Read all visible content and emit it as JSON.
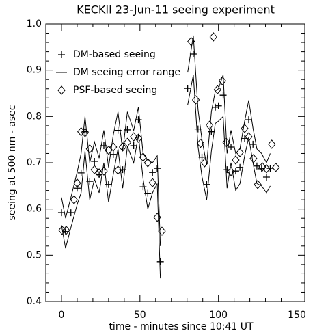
{
  "chart_data": {
    "type": "scatter",
    "title": "KECKII 23-Jun-11 seeing experiment",
    "x_label": "time - minutes since 10:41 UT",
    "y_label": "seeing at 500 nm - asec",
    "xlim": [
      -10,
      155
    ],
    "xticks": [
      0,
      50,
      100,
      150
    ],
    "x_minor": 5,
    "ylim": [
      0.4,
      1.0
    ],
    "yticks": [
      {
        "value": 0.4,
        "label": "0.4"
      },
      {
        "value": 0.5,
        "label": "0.5"
      },
      {
        "value": 0.6,
        "label": "0.6"
      },
      {
        "value": 0.7,
        "label": "0.7"
      },
      {
        "value": 0.8,
        "label": "0.8"
      },
      {
        "value": 0.9,
        "label": "0.9"
      },
      {
        "value": 1.0,
        "label": "1.0"
      }
    ],
    "y_minor": 5,
    "legend": "upper left",
    "series": [
      {
        "name": "DM-based seeing",
        "marker": "plus",
        "color": "#000000",
        "x": [
          0,
          2.6,
          6,
          10,
          12.5,
          15,
          18,
          21,
          24,
          27,
          30,
          33,
          36,
          39,
          42,
          46,
          49,
          52,
          55,
          58,
          61,
          63,
          80.4,
          84,
          87,
          89.5,
          92.5,
          95.5,
          98,
          100,
          103,
          105.5,
          108,
          111,
          113.7,
          116.7,
          119.3,
          122,
          124.5,
          127.5,
          130.6,
          133
        ],
        "values": [
          0.592,
          0.551,
          0.592,
          0.645,
          0.678,
          0.767,
          0.66,
          0.703,
          0.674,
          0.737,
          0.653,
          0.718,
          0.77,
          0.685,
          0.771,
          0.737,
          0.793,
          0.648,
          0.634,
          0.679,
          0.688,
          0.486,
          0.861,
          0.935,
          0.773,
          0.712,
          0.653,
          0.767,
          0.82,
          0.823,
          0.846,
          0.685,
          0.734,
          0.682,
          0.69,
          0.752,
          0.793,
          0.74,
          0.693,
          0.687,
          0.669,
          0.688
        ]
      },
      {
        "name": "DM seeing error range",
        "marker": "band-lines",
        "color": "#000000",
        "x": [
          0,
          2.6,
          6,
          10,
          12.5,
          15,
          18,
          21,
          24,
          27,
          30,
          33,
          36,
          39,
          42,
          46,
          49,
          52,
          55,
          58,
          61,
          63,
          null,
          80.4,
          84,
          87,
          89.5,
          92.5,
          95.5,
          98,
          100,
          103,
          105.5,
          108,
          111,
          113.7,
          116.7,
          119.3,
          122,
          124.5,
          127.5,
          130.6,
          133
        ],
        "upper": [
          0.625,
          0.58,
          0.625,
          0.68,
          0.72,
          0.8,
          0.7,
          0.745,
          0.71,
          0.77,
          0.69,
          0.76,
          0.81,
          0.725,
          0.81,
          0.77,
          0.82,
          0.72,
          0.705,
          0.7,
          0.715,
          0.52,
          null,
          0.895,
          0.975,
          0.815,
          0.75,
          0.695,
          0.81,
          0.855,
          0.86,
          0.89,
          0.72,
          0.77,
          0.72,
          0.73,
          0.79,
          0.835,
          0.775,
          0.73,
          0.72,
          0.7,
          0.72
        ],
        "lower": [
          0.565,
          0.515,
          0.56,
          0.61,
          0.635,
          0.725,
          0.62,
          0.665,
          0.635,
          0.7,
          0.615,
          0.675,
          0.73,
          0.645,
          0.735,
          0.7,
          0.76,
          0.665,
          0.6,
          0.635,
          0.655,
          0.45,
          null,
          0.825,
          0.89,
          0.735,
          0.67,
          0.62,
          0.725,
          0.785,
          0.79,
          0.8,
          0.645,
          0.7,
          0.64,
          0.655,
          0.715,
          0.755,
          0.7,
          0.655,
          0.65,
          0.635,
          0.65
        ]
      },
      {
        "name": "PSF-based seeing",
        "marker": "diamond",
        "color": "#000000",
        "x": [
          0.4,
          3,
          8,
          10,
          12.5,
          15,
          18,
          21,
          24,
          27,
          30,
          33,
          36,
          39,
          42,
          46,
          49,
          52,
          55,
          58,
          61,
          64,
          82.6,
          85.6,
          88.6,
          91.2,
          94.3,
          96.8,
          99.4,
          102.5,
          105,
          108,
          111,
          113.7,
          116.7,
          119.3,
          122.3,
          125,
          128,
          130.6,
          134,
          136.6
        ],
        "values": [
          0.554,
          0.554,
          0.62,
          0.656,
          0.767,
          0.765,
          0.73,
          0.685,
          0.678,
          0.682,
          0.727,
          0.734,
          0.684,
          0.734,
          0.744,
          0.756,
          0.753,
          0.712,
          0.7,
          0.657,
          0.582,
          0.552,
          0.962,
          0.836,
          0.742,
          0.7,
          0.781,
          0.972,
          0.858,
          0.877,
          0.744,
          0.681,
          0.706,
          0.722,
          0.774,
          0.756,
          0.709,
          0.653,
          0.691,
          0.687,
          0.74,
          0.69
        ]
      }
    ]
  }
}
